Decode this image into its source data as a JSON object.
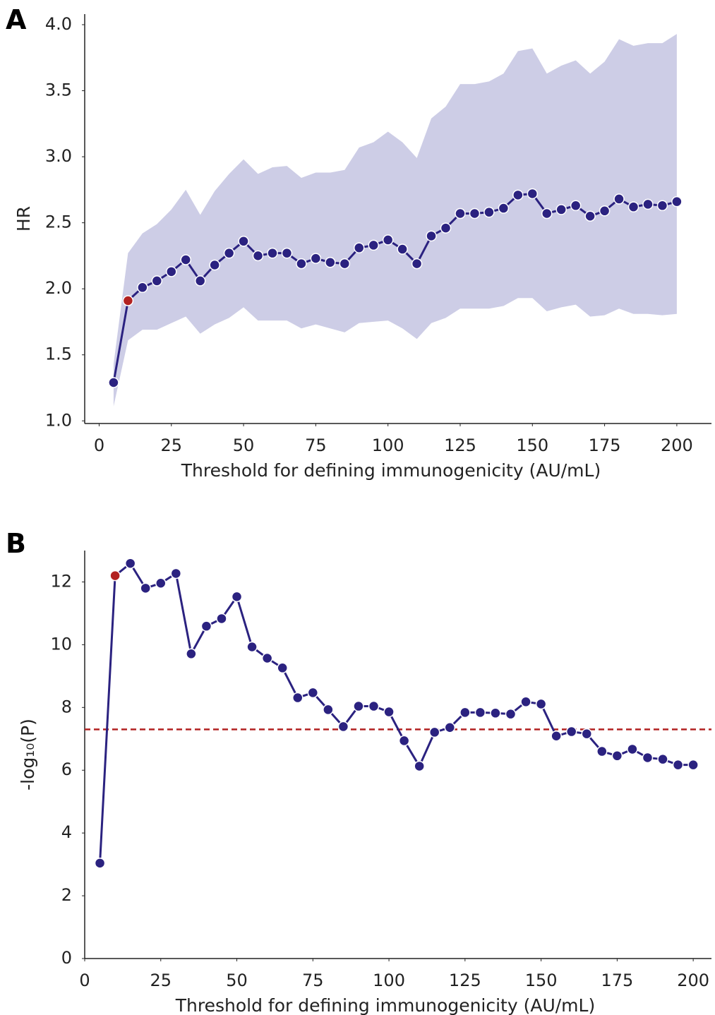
{
  "chart_data": [
    {
      "type": "line",
      "panel_label": "A",
      "xlabel": "Threshold for defining immunogenicity (AU/mL)",
      "ylabel": "HR",
      "x": [
        5,
        10,
        15,
        20,
        25,
        30,
        35,
        40,
        45,
        50,
        55,
        60,
        65,
        70,
        75,
        80,
        85,
        90,
        95,
        100,
        105,
        110,
        115,
        120,
        125,
        130,
        135,
        140,
        145,
        150,
        155,
        160,
        165,
        170,
        175,
        180,
        185,
        190,
        195,
        200
      ],
      "values": [
        1.29,
        1.91,
        2.01,
        2.06,
        2.13,
        2.22,
        2.06,
        2.18,
        2.27,
        2.36,
        2.25,
        2.27,
        2.27,
        2.19,
        2.23,
        2.2,
        2.19,
        2.31,
        2.33,
        2.37,
        2.3,
        2.19,
        2.4,
        2.46,
        2.57,
        2.57,
        2.58,
        2.61,
        2.71,
        2.72,
        2.57,
        2.6,
        2.63,
        2.55,
        2.59,
        2.68,
        2.62,
        2.64,
        2.63,
        2.66
      ],
      "ci_lower": [
        1.11,
        1.61,
        1.69,
        1.69,
        1.74,
        1.79,
        1.66,
        1.73,
        1.78,
        1.86,
        1.76,
        1.76,
        1.76,
        1.7,
        1.73,
        1.7,
        1.67,
        1.74,
        1.75,
        1.76,
        1.7,
        1.62,
        1.74,
        1.78,
        1.85,
        1.85,
        1.85,
        1.87,
        1.93,
        1.93,
        1.83,
        1.86,
        1.88,
        1.79,
        1.8,
        1.85,
        1.81,
        1.81,
        1.8,
        1.81
      ],
      "ci_upper": [
        1.43,
        2.27,
        2.42,
        2.49,
        2.6,
        2.75,
        2.56,
        2.74,
        2.87,
        2.98,
        2.87,
        2.92,
        2.93,
        2.84,
        2.88,
        2.88,
        2.9,
        3.07,
        3.11,
        3.19,
        3.11,
        2.99,
        3.29,
        3.38,
        3.55,
        3.55,
        3.57,
        3.63,
        3.8,
        3.82,
        3.63,
        3.69,
        3.73,
        3.63,
        3.72,
        3.89,
        3.84,
        3.86,
        3.86,
        3.93
      ],
      "color": "#2b2280",
      "band_color": "#cdcde6",
      "highlight_index": 1,
      "highlight_color": "#b22222",
      "xlim": [
        -5,
        212
      ],
      "ylim": [
        0.98,
        4.08
      ],
      "xticks": [
        0,
        25,
        50,
        75,
        100,
        125,
        150,
        175,
        200
      ],
      "yticks": [
        {
          "value": 1,
          "label": "1.0"
        },
        {
          "value": 1.5,
          "label": "1.5"
        },
        {
          "value": 2,
          "label": "2.0"
        },
        {
          "value": 2.5,
          "label": "2.5"
        },
        {
          "value": 3,
          "label": "3.0"
        },
        {
          "value": 3.5,
          "label": "3.5"
        },
        {
          "value": 4,
          "label": "4.0"
        }
      ]
    },
    {
      "type": "line",
      "panel_label": "B",
      "xlabel": "Threshold for defining immunogenicity (AU/mL)",
      "ylabel": "-log₁₀(P)",
      "x": [
        5,
        10,
        15,
        20,
        25,
        30,
        35,
        40,
        45,
        50,
        55,
        60,
        65,
        70,
        75,
        80,
        85,
        90,
        95,
        100,
        105,
        110,
        115,
        120,
        125,
        130,
        135,
        140,
        145,
        150,
        155,
        160,
        165,
        170,
        175,
        180,
        185,
        190,
        195,
        200
      ],
      "values": [
        3.04,
        12.2,
        12.59,
        11.8,
        11.96,
        12.27,
        9.71,
        10.59,
        10.83,
        11.53,
        9.93,
        9.57,
        9.26,
        8.31,
        8.47,
        7.93,
        7.39,
        8.04,
        8.04,
        7.86,
        6.94,
        6.13,
        7.21,
        7.36,
        7.84,
        7.84,
        7.82,
        7.79,
        8.18,
        8.11,
        7.09,
        7.23,
        7.16,
        6.6,
        6.46,
        6.67,
        6.4,
        6.35,
        6.17,
        6.17
      ],
      "color": "#2b2280",
      "highlight_index": 1,
      "highlight_color": "#b22222",
      "hline": {
        "value": 7.3,
        "color": "#b22222"
      },
      "xlim": [
        0,
        206
      ],
      "ylim": [
        0,
        13
      ],
      "xticks": [
        0,
        25,
        50,
        75,
        100,
        125,
        150,
        175,
        200
      ],
      "yticks": [
        0,
        2,
        4,
        6,
        8,
        10,
        12
      ]
    }
  ]
}
